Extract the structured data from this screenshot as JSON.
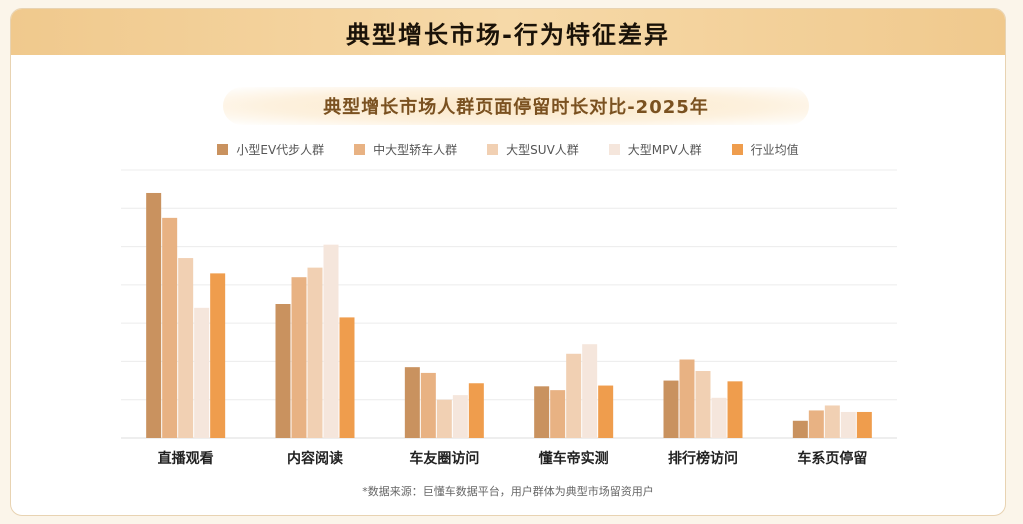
{
  "header": {
    "title": "典型增长市场-行为特征差异"
  },
  "chart_data": {
    "type": "bar",
    "title": "典型增长市场人群页面停留时长对比-2025年",
    "categories": [
      "直播观看",
      "内容阅读",
      "车友圈访问",
      "懂车帝实测",
      "排行榜访问",
      "车系页停留"
    ],
    "series": [
      {
        "name": "小型EV代步人群",
        "color": "#c9925f",
        "values": [
          6.4,
          3.5,
          1.85,
          1.35,
          1.5,
          0.45
        ]
      },
      {
        "name": "中大型轿车人群",
        "color": "#e8b283",
        "values": [
          5.75,
          4.2,
          1.7,
          1.25,
          2.05,
          0.72
        ]
      },
      {
        "name": "大型SUV人群",
        "color": "#f1d0b3",
        "values": [
          4.7,
          4.45,
          1.0,
          2.2,
          1.75,
          0.85
        ]
      },
      {
        "name": "大型MPV人群",
        "color": "#f5e6dc",
        "values": [
          3.4,
          5.05,
          1.12,
          2.45,
          1.05,
          0.68
        ]
      },
      {
        "name": "行业均值",
        "color": "#ef9d4d",
        "values": [
          4.3,
          3.15,
          1.43,
          1.37,
          1.48,
          0.68
        ]
      }
    ],
    "ylim": [
      0,
      7
    ],
    "grid": true,
    "legend": "top-center"
  },
  "footnote": "*数据来源：巨懂车数据平台，用户群体为典型市场留资用户"
}
